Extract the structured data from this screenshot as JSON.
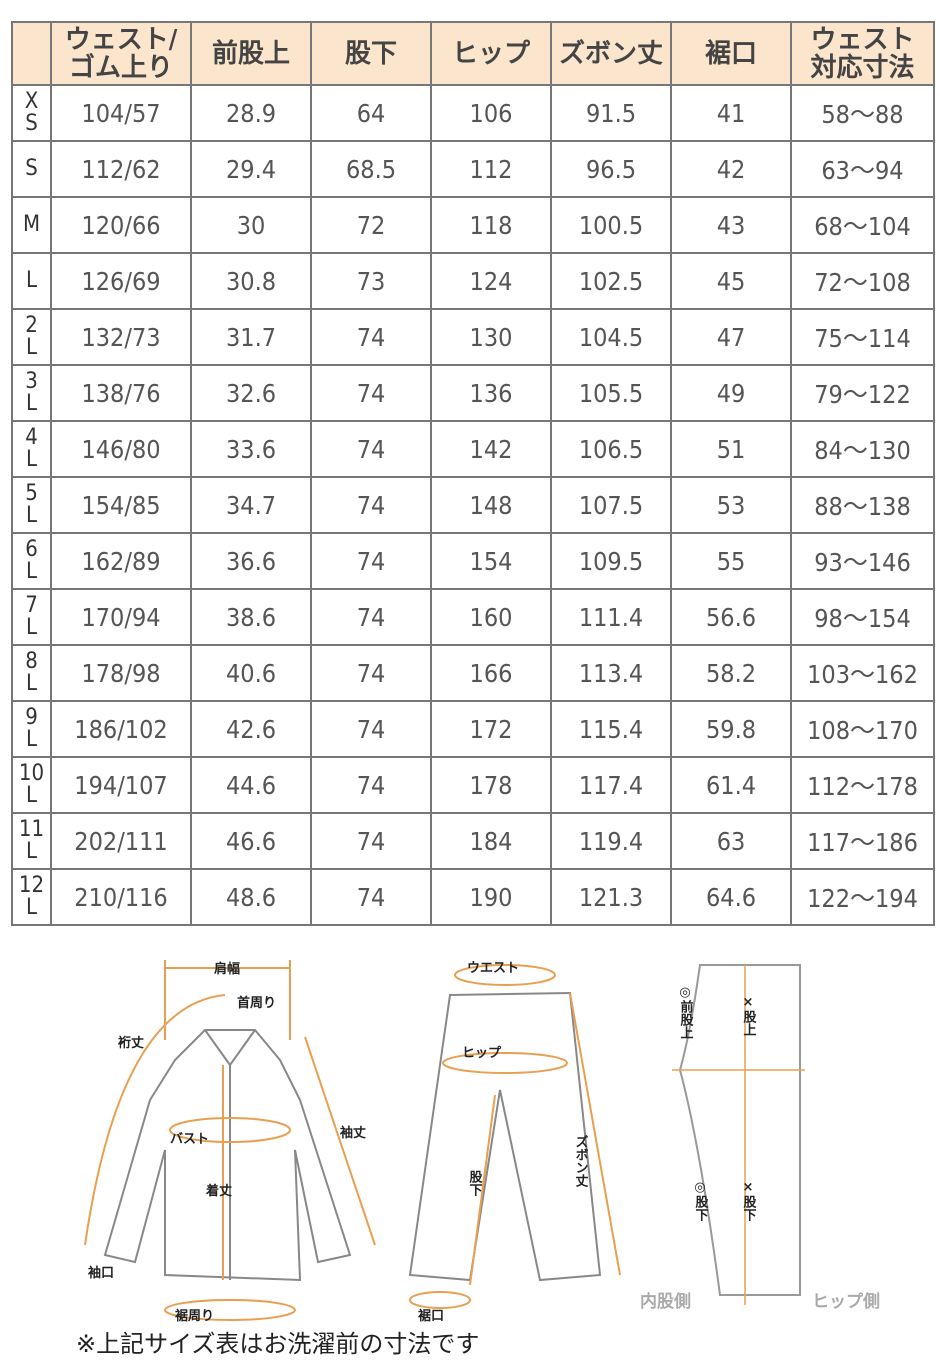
{
  "headers": [
    "",
    "ウェスト/\nゴム上り",
    "前股上",
    "股下",
    "ヒップ",
    "ズボン丈",
    "裾口",
    "ウェスト\n対応寸法"
  ],
  "rows": [
    [
      "X\nS",
      "104/57",
      "28.9",
      "64",
      "106",
      "91.5",
      "41",
      "58～88"
    ],
    [
      "S",
      "112/62",
      "29.4",
      "68.5",
      "112",
      "96.5",
      "42",
      "63～94"
    ],
    [
      "M",
      "120/66",
      "30",
      "72",
      "118",
      "100.5",
      "43",
      "68～104"
    ],
    [
      "L",
      "126/69",
      "30.8",
      "73",
      "124",
      "102.5",
      "45",
      "72～108"
    ],
    [
      "2\nL",
      "132/73",
      "31.7",
      "74",
      "130",
      "104.5",
      "47",
      "75～114"
    ],
    [
      "3\nL",
      "138/76",
      "32.6",
      "74",
      "136",
      "105.5",
      "49",
      "79～122"
    ],
    [
      "4\nL",
      "146/80",
      "33.6",
      "74",
      "142",
      "106.5",
      "51",
      "84～130"
    ],
    [
      "5\nL",
      "154/85",
      "34.7",
      "74",
      "148",
      "107.5",
      "53",
      "88～138"
    ],
    [
      "6\nL",
      "162/89",
      "36.6",
      "74",
      "154",
      "109.5",
      "55",
      "93～146"
    ],
    [
      "7\nL",
      "170/94",
      "38.6",
      "74",
      "160",
      "111.4",
      "56.6",
      "98～154"
    ],
    [
      "8\nL",
      "178/98",
      "40.6",
      "74",
      "166",
      "113.4",
      "58.2",
      "103～162"
    ],
    [
      "9\nL",
      "186/102",
      "42.6",
      "74",
      "172",
      "115.4",
      "59.8",
      "108～170"
    ],
    [
      "10\nL",
      "194/107",
      "44.6",
      "74",
      "178",
      "117.4",
      "61.4",
      "112～178"
    ],
    [
      "11\nL",
      "202/111",
      "46.6",
      "74",
      "184",
      "119.4",
      "63",
      "117～186"
    ],
    [
      "12\nL",
      "210/116",
      "48.6",
      "74",
      "190",
      "121.3",
      "64.6",
      "122～194"
    ]
  ],
  "diagram": {
    "shirt": {
      "katahaba": "肩幅",
      "kubimawari": "首周り",
      "yukitake": "裄丈",
      "bust": "バスト",
      "sodetake": "袖丈",
      "kitake": "着丈",
      "sodeguchi": "袖口",
      "susomawari": "裾周り"
    },
    "pants": {
      "waist": "ウエスト",
      "hip": "ヒップ",
      "zubontake": "ズボン丈",
      "matashita": "股下",
      "susoguchi": "裾口"
    },
    "side": {
      "mae_matagami": "◎前股上",
      "matagami": "×股上",
      "matashita_in": "◎股下",
      "matashita": "×股下",
      "uchimata": "内股側",
      "hip_side": "ヒップ側"
    }
  },
  "note": "※上記サイズ表はお洗濯前の寸法です",
  "colors": {
    "header_bg": "#fbe5cc",
    "accent": "#e8a050",
    "border": "#777777"
  }
}
